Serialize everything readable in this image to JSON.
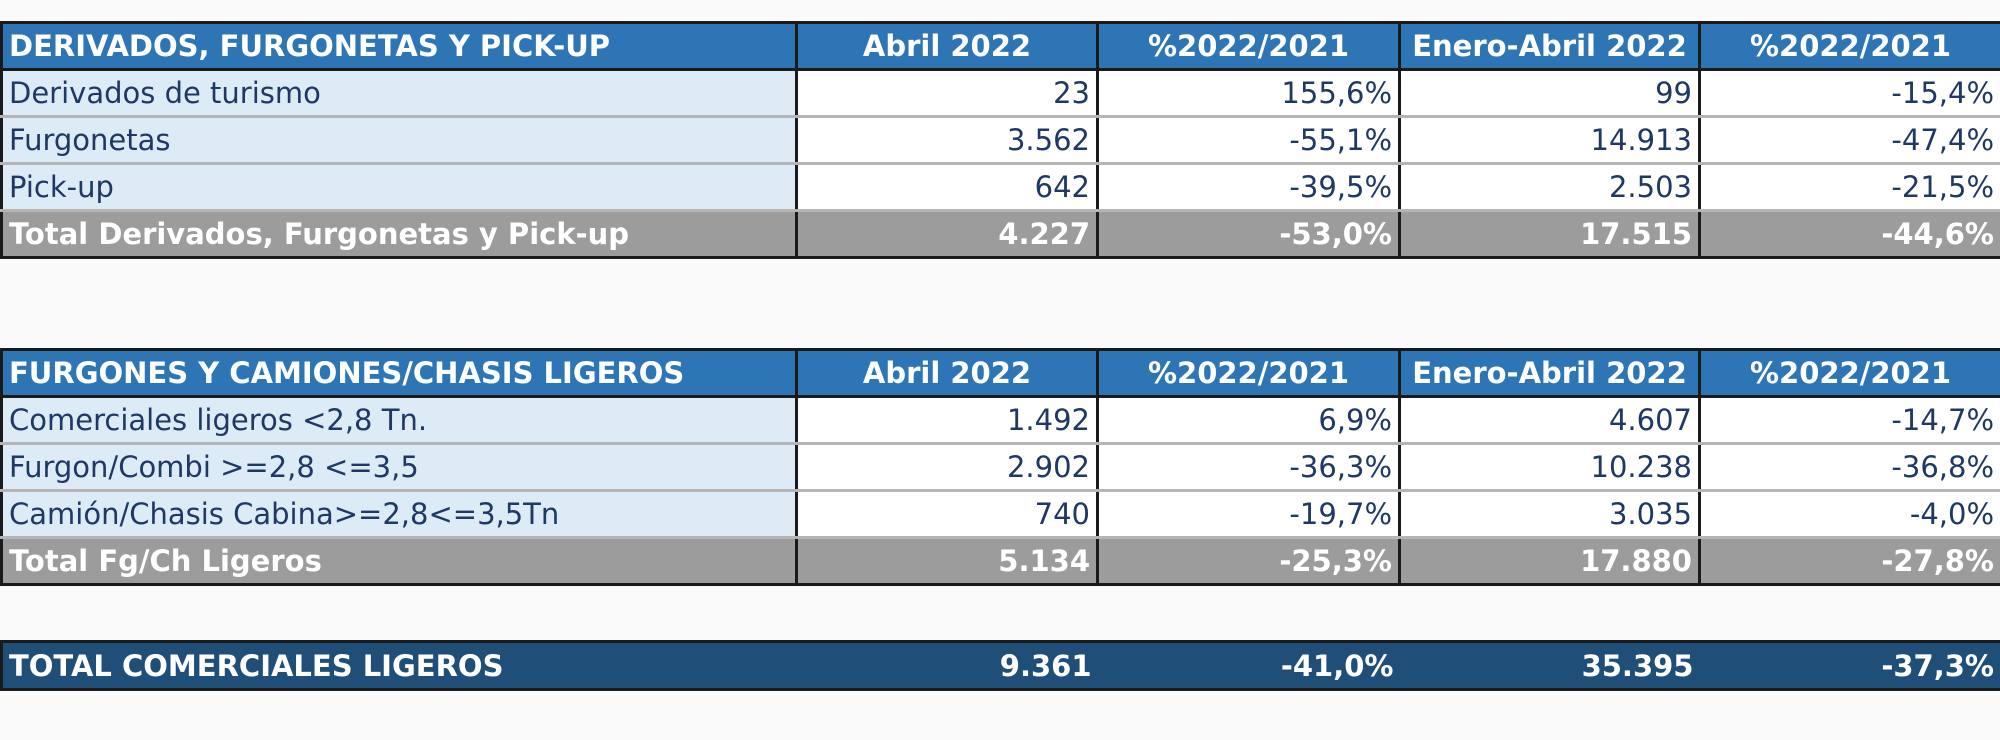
{
  "tables": [
    {
      "header": [
        "DERIVADOS, FURGONETAS Y PICK-UP",
        "Abril 2022",
        "%2022/2021",
        "Enero-Abril 2022",
        "%2022/2021"
      ],
      "rows": [
        [
          "Derivados de turismo",
          "23",
          "155,6%",
          "99",
          "-15,4%"
        ],
        [
          "Furgonetas",
          "3.562",
          "-55,1%",
          "14.913",
          "-47,4%"
        ],
        [
          "Pick-up",
          "642",
          "-39,5%",
          "2.503",
          "-21,5%"
        ]
      ],
      "total": [
        "Total Derivados, Furgonetas y Pick-up",
        "4.227",
        "-53,0%",
        "17.515",
        "-44,6%"
      ]
    },
    {
      "header": [
        "FURGONES Y CAMIONES/CHASIS LIGEROS",
        "Abril 2022",
        "%2022/2021",
        "Enero-Abril 2022",
        "%2022/2021"
      ],
      "rows": [
        [
          "Comerciales ligeros <2,8 Tn.",
          "1.492",
          "6,9%",
          "4.607",
          "-14,7%"
        ],
        [
          "Furgon/Combi >=2,8 <=3,5",
          "2.902",
          "-36,3%",
          "10.238",
          "-36,8%"
        ],
        [
          "Camión/Chasis Cabina>=2,8<=3,5Tn",
          "740",
          "-19,7%",
          "3.035",
          "-4,0%"
        ]
      ],
      "total": [
        "Total Fg/Ch Ligeros",
        "5.134",
        "-25,3%",
        "17.880",
        "-27,8%"
      ]
    }
  ],
  "grand_total": [
    "TOTAL COMERCIALES LIGEROS",
    "9.361",
    "-41,0%",
    "35.395",
    "-37,3%"
  ],
  "colors": {
    "header_blue": "#2e75b6",
    "label_cell": "#ddebf7",
    "total_gray": "#9c9c9c",
    "grand_total_navy": "#1f4e79",
    "body_text": "#1f3864"
  }
}
